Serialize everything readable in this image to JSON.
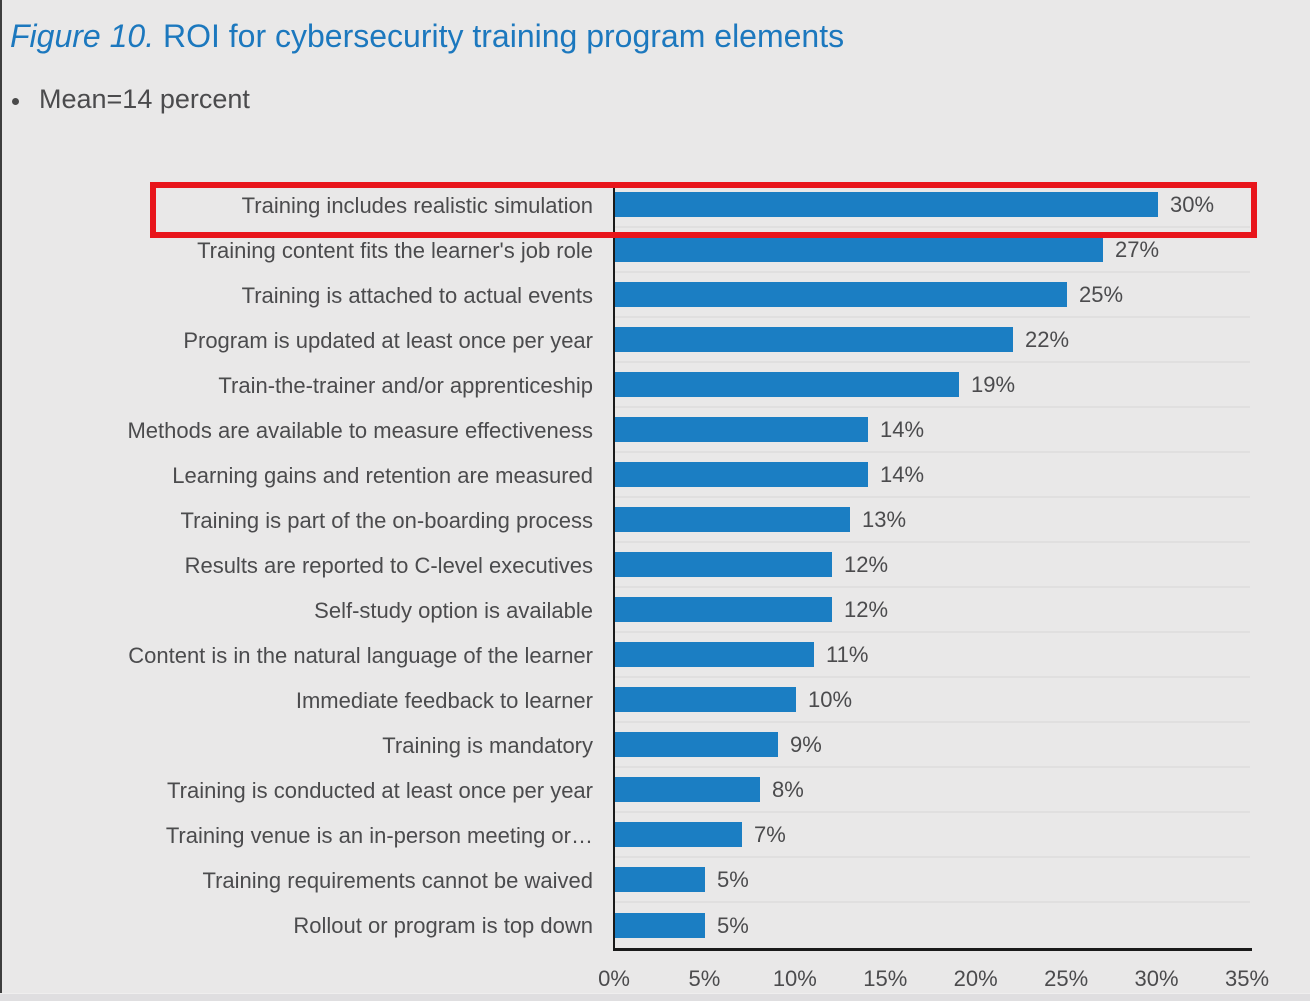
{
  "header": {
    "figure_label": "Figure 10.",
    "title_rest": " ROI for cybersecurity training program elements",
    "subtitle": "Mean=14 percent"
  },
  "colors": {
    "accent_blue": "#1B7EC3",
    "title_blue": "#1C78BE",
    "text_gray": "#4B4B4D",
    "axis_black": "#1A1A1A",
    "highlight_red": "#E8151B",
    "background_gray": "#E9E8E8"
  },
  "annotation": {
    "shape": "rectangle",
    "color_name": "red",
    "highlights_category": "Training includes realistic simulation",
    "highlights_value": "30%"
  },
  "chart_data": {
    "type": "bar",
    "orientation": "horizontal",
    "title": "ROI for cybersecurity training program elements",
    "note": "Mean=14 percent",
    "categories": [
      "Training includes realistic simulation",
      "Training content fits the learner's job role",
      "Training is attached to actual events",
      "Program is updated at least once per year",
      "Train-the-trainer and/or apprenticeship",
      "Methods are available to measure effectiveness",
      "Learning gains and retention are measured",
      "Training is part of the on-boarding process",
      "Results are reported to C-level executives",
      "Self-study option is available",
      "Content is in the natural language of the learner",
      "Immediate feedback to learner",
      "Training is mandatory",
      "Training is conducted at least once per year",
      "Training venue is an in-person meeting or…",
      "Training requirements cannot be waived",
      "Rollout or program is top down"
    ],
    "values": [
      30,
      27,
      25,
      22,
      19,
      14,
      14,
      13,
      12,
      12,
      11,
      10,
      9,
      8,
      7,
      5,
      5
    ],
    "value_suffix": "%",
    "x_ticks": [
      "0%",
      "5%",
      "10%",
      "15%",
      "20%",
      "25%",
      "30%",
      "35%"
    ],
    "xlim": [
      0,
      35
    ],
    "grid": "horizontal light separators between category rows",
    "legend": "none"
  }
}
